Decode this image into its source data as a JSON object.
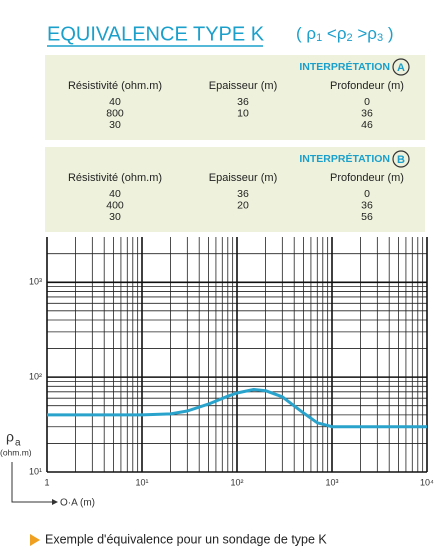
{
  "header": {
    "title": "EQUIVALENCE TYPE K",
    "formula": [
      "( ρ",
      "1",
      " <ρ",
      "2",
      " >ρ",
      "3",
      " )"
    ]
  },
  "panels": [
    {
      "label": "INTERPRÉTATION",
      "letter": "A",
      "columns": [
        "Résistivité (ohm.m)",
        "Epaisseur (m)",
        "Profondeur (m)"
      ],
      "rows": [
        {
          "res": 40,
          "thk": 36,
          "depth": 0
        },
        {
          "res": 800,
          "thk": 10,
          "depth": 36
        },
        {
          "res": 30,
          "depth": 46
        }
      ]
    },
    {
      "label": "INTERPRÉTATION",
      "letter": "B",
      "columns": [
        "Résistivité (ohm.m)",
        "Epaisseur (m)",
        "Profondeur (m)"
      ],
      "rows": [
        {
          "res": 40,
          "thk": 36,
          "depth": 0
        },
        {
          "res": 400,
          "thk": 20,
          "depth": 36
        },
        {
          "res": 30,
          "depth": 56
        }
      ]
    }
  ],
  "chart_data": {
    "type": "line",
    "log_x": true,
    "log_y": true,
    "grid": true,
    "color": "#2aa3cc",
    "x": [
      1,
      10,
      20,
      30,
      50,
      80,
      100,
      150,
      200,
      300,
      500,
      700,
      1000,
      2000,
      10000
    ],
    "values": [
      40,
      40,
      41,
      44,
      52,
      63,
      68,
      74,
      72,
      62,
      42,
      33,
      30,
      30,
      30
    ],
    "xlim": [
      1,
      10000
    ],
    "ylim": [
      10,
      3000
    ],
    "xticks": [
      1,
      {
        "value": 10,
        "label": "10¹"
      },
      {
        "value": 100,
        "label": "10²"
      },
      {
        "value": 1000,
        "label": "10³"
      },
      {
        "value": 10000,
        "label": "10⁴"
      }
    ],
    "yticks": [
      {
        "value": 10,
        "label": "10¹"
      },
      {
        "value": 100,
        "label": "10²"
      },
      {
        "value": 1000,
        "label": "10³"
      }
    ],
    "minor_xticks": [
      2,
      3,
      4,
      5,
      6,
      7,
      8,
      9,
      20,
      30,
      40,
      50,
      60,
      70,
      80,
      90,
      200,
      300,
      400,
      500,
      600,
      700,
      800,
      900,
      2000,
      3000,
      4000,
      5000,
      6000,
      7000,
      8000,
      9000
    ],
    "minor_yticks": [
      20,
      30,
      40,
      50,
      60,
      70,
      80,
      90,
      200,
      300,
      400,
      500,
      600,
      700,
      800,
      900,
      2000
    ],
    "xlabel": "O·A (m)",
    "ylabel": "ρ",
    "ylabel_sub": "a",
    "yunit": "(ohm.m)"
  },
  "caption": "Exemple d'équivalence pour un sondage de type K"
}
